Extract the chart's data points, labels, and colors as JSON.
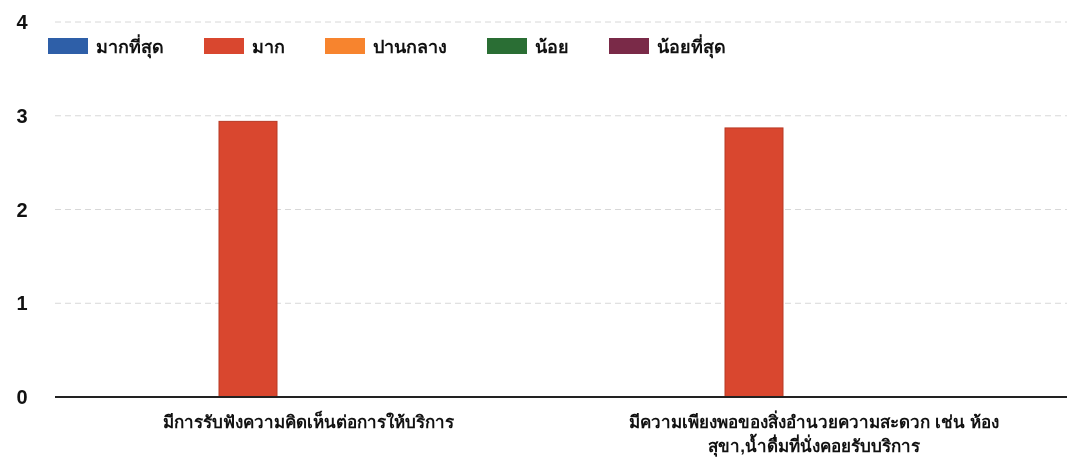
{
  "chart_data": {
    "type": "bar",
    "categories": [
      "มีการรับฟังความคิดเห็นต่อการให้บริการ",
      "มีความเพียงพอของสิ่งอำนวยความสะดวก เช่น ห้อง สุขา,น้ำดื่มที่นั่งคอยรับบริการ"
    ],
    "series": [
      {
        "name": "มากที่สุด",
        "color": "#2e5fa8",
        "values": [
          null,
          null
        ]
      },
      {
        "name": "มาก",
        "color": "#d9472f",
        "values": [
          2.94,
          2.87
        ]
      },
      {
        "name": "ปานกลาง",
        "color": "#f7842e",
        "values": [
          null,
          null
        ]
      },
      {
        "name": "น้อย",
        "color": "#2a6e34",
        "values": [
          null,
          null
        ]
      },
      {
        "name": "น้อยที่สุด",
        "color": "#7a2a48",
        "values": [
          null,
          null
        ]
      }
    ],
    "ylim": [
      0,
      4
    ],
    "yticks": [
      0,
      1,
      2,
      3,
      4
    ],
    "grid": "y",
    "legend": "top left"
  }
}
